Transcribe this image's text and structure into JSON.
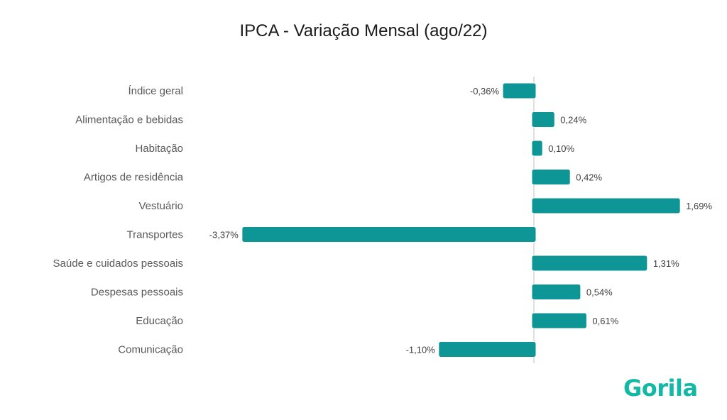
{
  "title": "IPCA - Variação Mensal (ago/22)",
  "logo_text": "Gorila",
  "colors": {
    "bar": "#0e9595",
    "bar_edge": "#ffffff",
    "axis": "#bfbfbf",
    "logo": "#14b8a6"
  },
  "chart_data": {
    "type": "bar",
    "orientation": "horizontal",
    "title": "IPCA - Variação Mensal (ago/22)",
    "categories": [
      "Índice geral",
      "Alimentação e bebidas",
      "Habitação",
      "Artigos de residência",
      "Vestuário",
      "Transportes",
      "Saúde e cuidados pessoais",
      "Despesas pessoais",
      "Educação",
      "Comunicação"
    ],
    "values": [
      -0.36,
      0.24,
      0.1,
      0.42,
      1.69,
      -3.37,
      1.31,
      0.54,
      0.61,
      -1.1
    ],
    "labels": [
      "-0,36%",
      "0,24%",
      "0,10%",
      "0,42%",
      "1,69%",
      "-3,37%",
      "1,31%",
      "0,54%",
      "0,61%",
      "-1,10%"
    ],
    "unit": "%",
    "xlim": [
      -3.37,
      1.69
    ],
    "grid": false,
    "legend": "none"
  }
}
